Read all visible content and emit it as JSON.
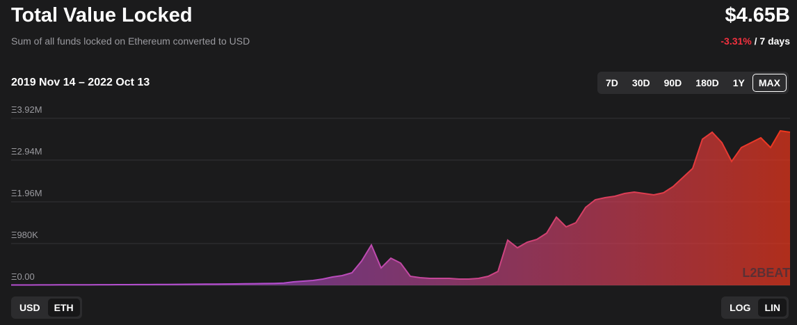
{
  "header": {
    "title": "Total Value Locked",
    "subtitle": "Sum of all funds locked on Ethereum converted to USD",
    "value": "$4.65B",
    "change": "-3.31%",
    "change_period": "/ 7 days"
  },
  "date_range": "2019 Nov 14 – 2022 Oct 13",
  "range_buttons": [
    "7D",
    "30D",
    "90D",
    "180D",
    "1Y",
    "MAX"
  ],
  "selected_range": "MAX",
  "currency_buttons": [
    "USD",
    "ETH"
  ],
  "selected_currency": "ETH",
  "scale_buttons": [
    "LOG",
    "LIN"
  ],
  "selected_scale": "LIN",
  "watermark": "L2BEAT",
  "chart_data": {
    "type": "area",
    "values": [
      8000,
      8000,
      8000,
      10000,
      10000,
      11000,
      11000,
      13000,
      13000,
      15000,
      15000,
      16000,
      16000,
      18000,
      18000,
      20000,
      21000,
      23000,
      25000,
      26000,
      28000,
      29000,
      31000,
      33000,
      36000,
      39000,
      42000,
      46000,
      52000,
      82000,
      98000,
      114000,
      147000,
      196000,
      229000,
      294000,
      572000,
      947000,
      408000,
      637000,
      523000,
      212000,
      180000,
      163000,
      163000,
      163000,
      147000,
      147000,
      163000,
      212000,
      327000,
      1062000,
      882000,
      1013000,
      1078000,
      1225000,
      1601000,
      1372000,
      1470000,
      1829000,
      2009000,
      2058000,
      2091000,
      2156000,
      2189000,
      2156000,
      2123000,
      2172000,
      2319000,
      2532000,
      2744000,
      3430000,
      3593000,
      3348000,
      2907000,
      3234000,
      3348000,
      3463000,
      3234000,
      3626000,
      3593000
    ],
    "ylim": [
      0,
      3920000
    ],
    "yticks": [
      {
        "value": 0,
        "label": "Ξ0.00"
      },
      {
        "value": 980000,
        "label": "Ξ980K"
      },
      {
        "value": 1960000,
        "label": "Ξ1.96M"
      },
      {
        "value": 2940000,
        "label": "Ξ2.94M"
      },
      {
        "value": 3920000,
        "label": "Ξ3.92M"
      }
    ],
    "grid": true,
    "color_gradient": [
      "#b44ecf",
      "#ef361b"
    ]
  }
}
